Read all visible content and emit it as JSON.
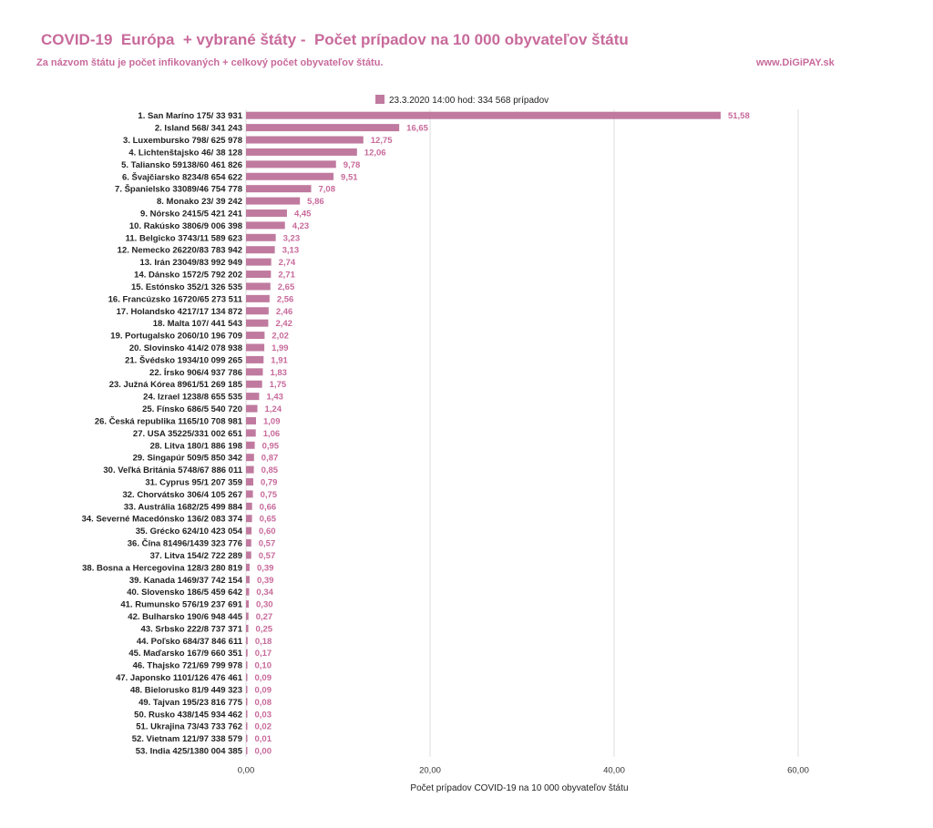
{
  "header": {
    "title": "COVID-19  Európa  + vybrané štáty -  Počet prípadov na 10 000 obyvateľov štátu",
    "subtitle": "Za názvom štátu je počet infikovaných + celkový počet obyvateľov štátu.",
    "website": "www.DiGiPAY.sk"
  },
  "colors": {
    "accent": "#c86a9b",
    "bar": "#c07a9f",
    "grid": "#dddddd"
  },
  "chart_data": {
    "type": "bar",
    "orientation": "horizontal",
    "xlabel": "Počet prípadov COVID-19  na 10 000 obyvateľov štátu",
    "xlim": [
      0,
      60
    ],
    "xticks": [
      "0,00",
      "20,00",
      "40,00",
      "60,00"
    ],
    "grid": true,
    "legend_position": "top",
    "series": [
      {
        "name": "23.3.2020 14:00 hod: 334 568 prípadov",
        "values": [
          51.58,
          16.65,
          12.75,
          12.06,
          9.78,
          9.51,
          7.08,
          5.86,
          4.45,
          4.23,
          3.23,
          3.13,
          2.74,
          2.71,
          2.65,
          2.56,
          2.46,
          2.42,
          2.02,
          1.99,
          1.91,
          1.83,
          1.75,
          1.43,
          1.24,
          1.09,
          1.06,
          0.95,
          0.87,
          0.85,
          0.79,
          0.75,
          0.66,
          0.65,
          0.6,
          0.57,
          0.57,
          0.39,
          0.39,
          0.34,
          0.3,
          0.27,
          0.25,
          0.18,
          0.17,
          0.1,
          0.09,
          0.09,
          0.08,
          0.03,
          0.02,
          0.01,
          0.0
        ],
        "value_labels": [
          "51,58",
          "16,65",
          "12,75",
          "12,06",
          "9,78",
          "9,51",
          "7,08",
          "5,86",
          "4,45",
          "4,23",
          "3,23",
          "3,13",
          "2,74",
          "2,71",
          "2,65",
          "2,56",
          "2,46",
          "2,42",
          "2,02",
          "1,99",
          "1,91",
          "1,83",
          "1,75",
          "1,43",
          "1,24",
          "1,09",
          "1,06",
          "0,95",
          "0,87",
          "0,85",
          "0,79",
          "0,75",
          "0,66",
          "0,65",
          "0,60",
          "0,57",
          "0,57",
          "0,39",
          "0,39",
          "0,34",
          "0,30",
          "0,27",
          "0,25",
          "0,18",
          "0,17",
          "0,10",
          "0,09",
          "0,09",
          "0,08",
          "0,03",
          "0,02",
          "0,01",
          "0,00"
        ]
      }
    ],
    "categories": [
      "1. San Maríno 175/ 33 931",
      "2. Island 568/ 341 243",
      "3. Luxembursko 798/ 625 978",
      "4. Lichtenštajsko 46/ 38 128",
      "5. Taliansko 59138/60 461 826",
      "6. Švajčiarsko 8234/8 654 622",
      "7. Španielsko 33089/46 754 778",
      "8. Monako 23/ 39 242",
      "9. Nórsko 2415/5 421 241",
      "10. Rakúsko 3806/9 006 398",
      "11. Belgicko 3743/11 589 623",
      "12. Nemecko 26220/83 783 942",
      "13. Irán 23049/83 992 949",
      "14. Dánsko 1572/5 792 202",
      "15. Estónsko 352/1 326 535",
      "16. Francúzsko 16720/65 273 511",
      "17. Holandsko 4217/17 134 872",
      "18. Malta 107/ 441 543",
      "19. Portugalsko 2060/10 196 709",
      "20. Slovinsko 414/2 078 938",
      "21. Švédsko 1934/10 099 265",
      "22. Írsko 906/4 937 786",
      "23. Južná Kórea 8961/51 269 185",
      "24. Izrael 1238/8 655 535",
      "25. Fínsko 686/5 540 720",
      "26. Česká republika 1165/10 708 981",
      "27. USA 35225/331 002 651",
      "28. Litva 180/1 886 198",
      "29. Singapúr 509/5 850 342",
      "30. Veľká Británia 5748/67 886 011",
      "31. Cyprus 95/1 207 359",
      "32. Chorvátsko 306/4 105 267",
      "33. Austrália 1682/25 499 884",
      "34. Severné Macedónsko 136/2 083 374",
      "35. Grécko 624/10 423 054",
      "36. Čína 81496/1439 323 776",
      "37. Litva 154/2 722 289",
      "38. Bosna a Hercegovina 128/3 280 819",
      "39. Kanada 1469/37 742 154",
      "40. Slovensko 186/5 459 642",
      "41. Rumunsko 576/19 237 691",
      "42. Bulharsko 190/6 948 445",
      "43. Srbsko 222/8 737 371",
      "44. Poľsko 684/37 846 611",
      "45. Maďarsko 167/9 660 351",
      "46. Thajsko 721/69 799 978",
      "47. Japonsko 1101/126 476 461",
      "48. Bielorusko 81/9 449 323",
      "49. Tajvan 195/23 816 775",
      "50. Rusko 438/145 934 462",
      "51. Ukrajina  73/43 733 762",
      "52. Vietnam 121/97 338 579",
      "53. India 425/1380 004 385"
    ]
  }
}
